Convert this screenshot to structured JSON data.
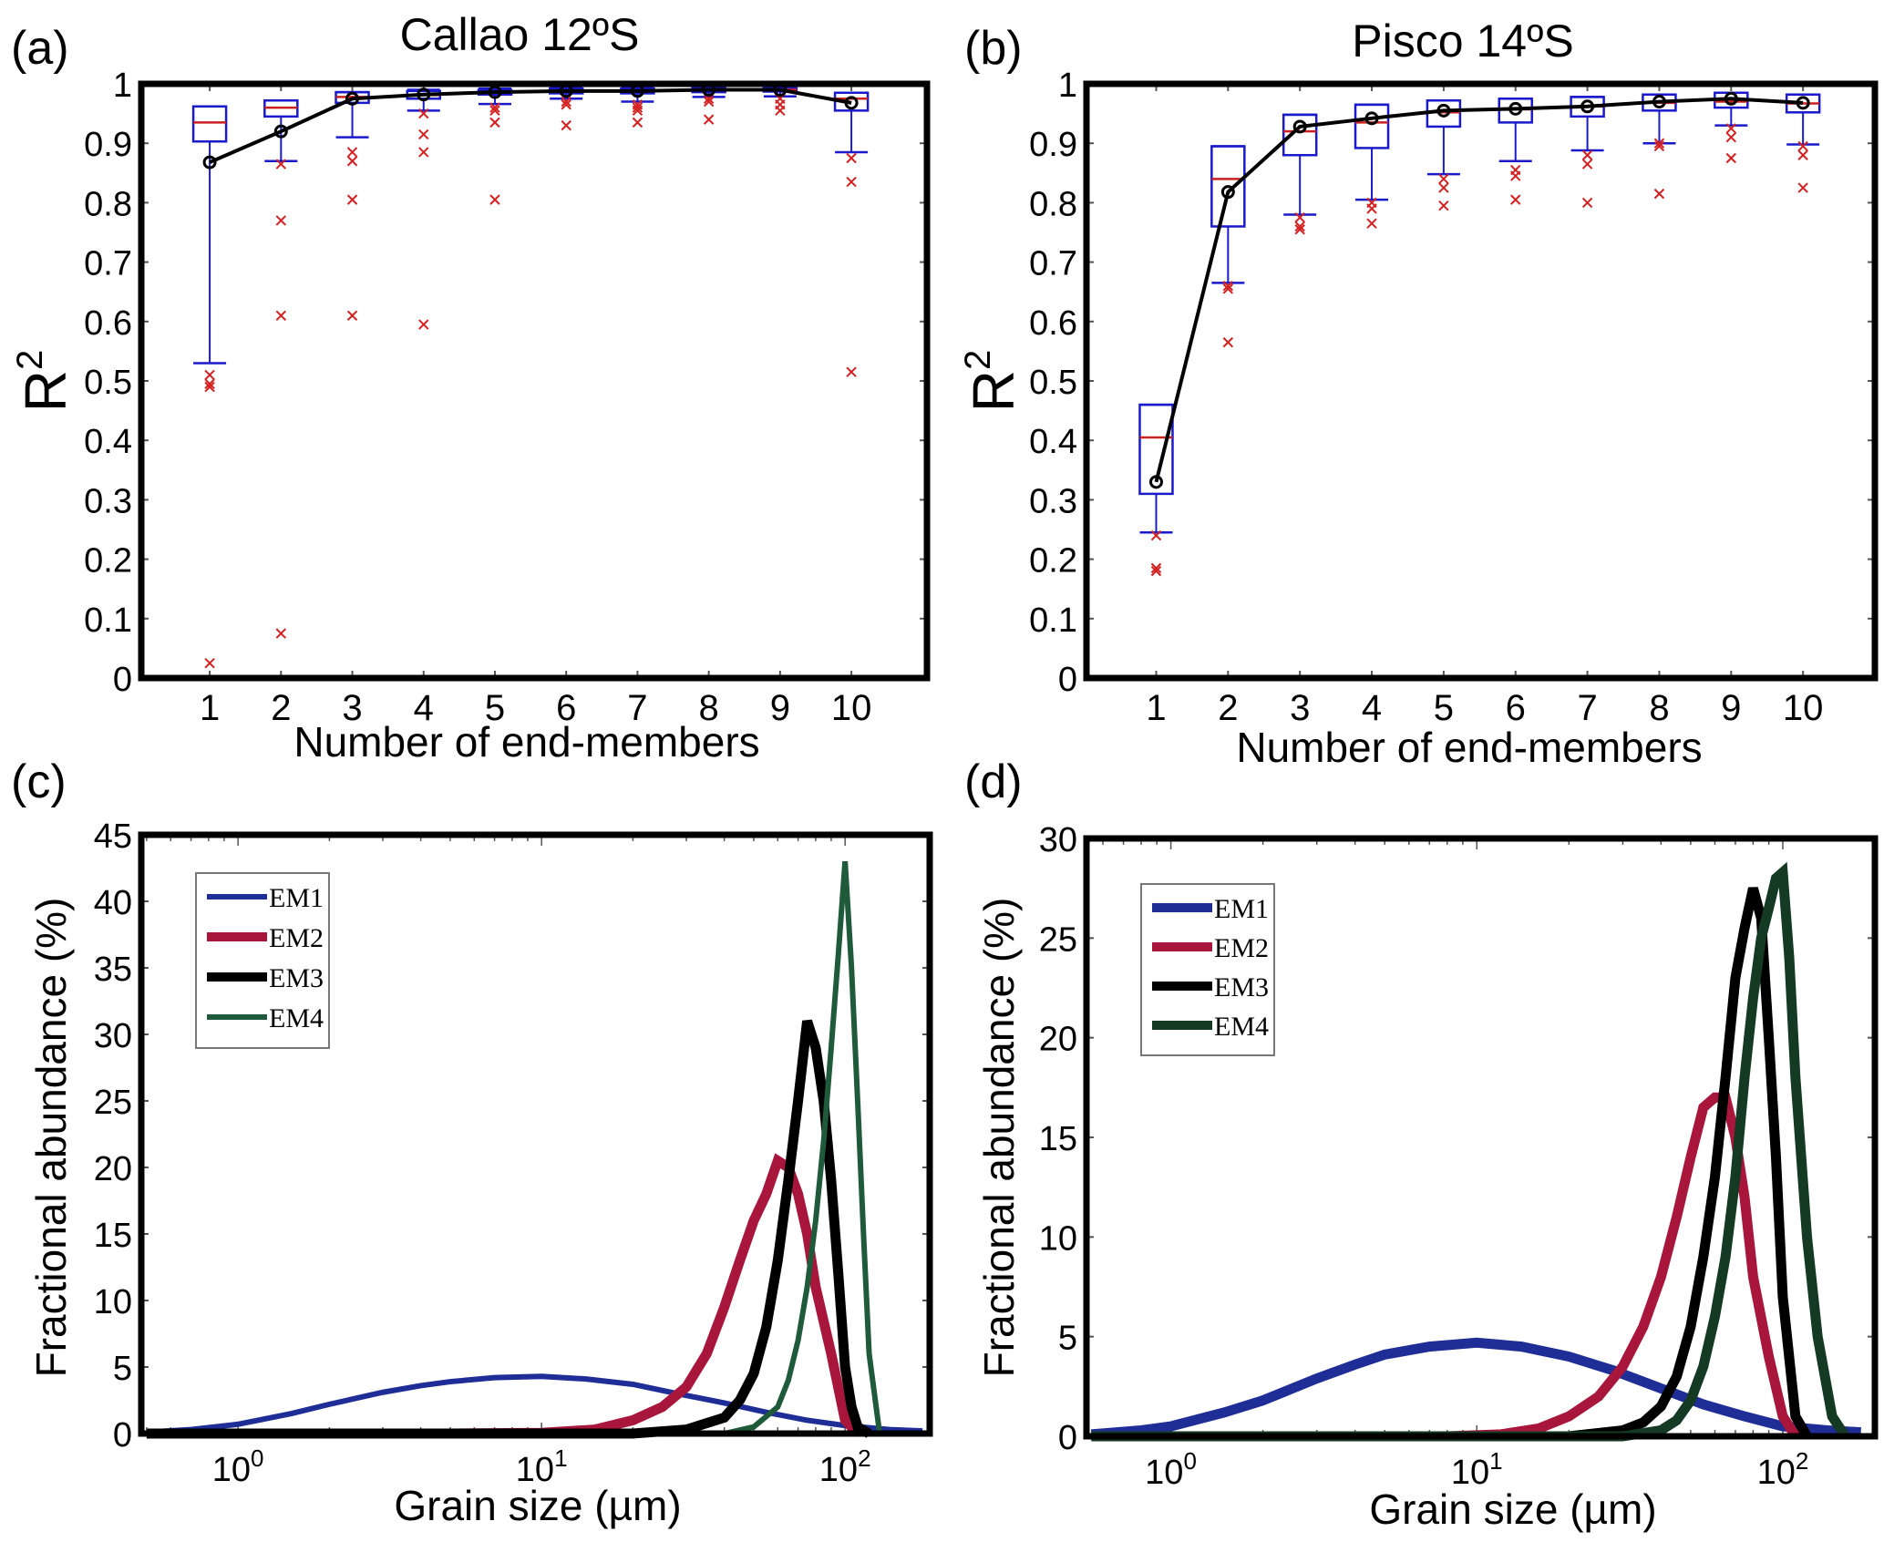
{
  "chart_data": [
    {
      "panel_label": "(a)",
      "type": "box",
      "title": "Callao 12ºS",
      "xlabel": "Number of end-members",
      "ylabel": "R",
      "ylabel_sup": "2",
      "xlim": [
        0.04,
        11.06
      ],
      "ylim": [
        0,
        1
      ],
      "yticks": [
        "0",
        "0.1",
        "0.2",
        "0.3",
        "0.4",
        "0.5",
        "0.6",
        "0.7",
        "0.8",
        "0.9",
        "1"
      ],
      "categories": [
        "1",
        "2",
        "3",
        "4",
        "5",
        "6",
        "7",
        "8",
        "9",
        "10"
      ],
      "boxes": [
        {
          "q1": 0.903,
          "median": 0.935,
          "q3": 0.962,
          "wlo": 0.53,
          "whi": 0.962,
          "outliers": [
            0.51,
            0.495,
            0.49,
            0.025
          ]
        },
        {
          "q1": 0.945,
          "median": 0.96,
          "q3": 0.972,
          "wlo": 0.87,
          "whi": 0.972,
          "outliers": [
            0.865,
            0.77,
            0.61,
            0.075
          ]
        },
        {
          "q1": 0.968,
          "median": 0.978,
          "q3": 0.986,
          "wlo": 0.91,
          "whi": 0.986,
          "outliers": [
            0.885,
            0.87,
            0.805,
            0.61
          ]
        },
        {
          "q1": 0.975,
          "median": 0.981,
          "q3": 0.988,
          "wlo": 0.955,
          "whi": 0.99,
          "outliers": [
            0.95,
            0.915,
            0.885,
            0.595
          ]
        },
        {
          "q1": 0.982,
          "median": 0.986,
          "q3": 0.99,
          "wlo": 0.966,
          "whi": 0.992,
          "outliers": [
            0.96,
            0.955,
            0.935,
            0.805
          ]
        },
        {
          "q1": 0.984,
          "median": 0.988,
          "q3": 0.992,
          "wlo": 0.975,
          "whi": 0.993,
          "outliers": [
            0.97,
            0.965,
            0.93
          ]
        },
        {
          "q1": 0.984,
          "median": 0.988,
          "q3": 0.992,
          "wlo": 0.97,
          "whi": 0.993,
          "outliers": [
            0.965,
            0.96,
            0.955,
            0.935
          ]
        },
        {
          "q1": 0.986,
          "median": 0.99,
          "q3": 0.993,
          "wlo": 0.978,
          "whi": 0.994,
          "outliers": [
            0.975,
            0.97,
            0.94
          ]
        },
        {
          "q1": 0.987,
          "median": 0.99,
          "q3": 0.993,
          "wlo": 0.979,
          "whi": 0.994,
          "outliers": [
            0.975,
            0.965,
            0.955
          ]
        },
        {
          "q1": 0.955,
          "median": 0.975,
          "q3": 0.985,
          "wlo": 0.885,
          "whi": 0.985,
          "outliers": [
            0.875,
            0.835,
            0.515
          ]
        }
      ],
      "mean_line": [
        0.868,
        0.92,
        0.975,
        0.982,
        0.986,
        0.988,
        0.988,
        0.99,
        0.99,
        0.968
      ],
      "colors": {
        "box": "#1a1acc",
        "median": "#cc2020",
        "outlier": "#d42020",
        "mean": "#000000"
      }
    },
    {
      "panel_label": "(b)",
      "type": "box",
      "title": "Pisco 14ºS",
      "xlabel": "Number of end-members",
      "ylabel": "R",
      "ylabel_sup": "2",
      "xlim": [
        0.03,
        11.0
      ],
      "ylim": [
        0,
        1
      ],
      "yticks": [
        "0",
        "0.1",
        "0.2",
        "0.3",
        "0.4",
        "0.5",
        "0.6",
        "0.7",
        "0.8",
        "0.9",
        "1"
      ],
      "categories": [
        "1",
        "2",
        "3",
        "4",
        "5",
        "6",
        "7",
        "8",
        "9",
        "10"
      ],
      "boxes": [
        {
          "q1": 0.31,
          "median": 0.405,
          "q3": 0.46,
          "wlo": 0.245,
          "whi": 0.46,
          "outliers": [
            0.24,
            0.185,
            0.18
          ]
        },
        {
          "q1": 0.76,
          "median": 0.84,
          "q3": 0.895,
          "wlo": 0.665,
          "whi": 0.895,
          "outliers": [
            0.66,
            0.655,
            0.565
          ]
        },
        {
          "q1": 0.88,
          "median": 0.92,
          "q3": 0.948,
          "wlo": 0.78,
          "whi": 0.948,
          "outliers": [
            0.775,
            0.76,
            0.755
          ]
        },
        {
          "q1": 0.892,
          "median": 0.935,
          "q3": 0.965,
          "wlo": 0.805,
          "whi": 0.965,
          "outliers": [
            0.8,
            0.79,
            0.765
          ]
        },
        {
          "q1": 0.928,
          "median": 0.952,
          "q3": 0.972,
          "wlo": 0.848,
          "whi": 0.972,
          "outliers": [
            0.84,
            0.825,
            0.795
          ]
        },
        {
          "q1": 0.935,
          "median": 0.957,
          "q3": 0.975,
          "wlo": 0.87,
          "whi": 0.975,
          "outliers": [
            0.855,
            0.845,
            0.805
          ]
        },
        {
          "q1": 0.945,
          "median": 0.962,
          "q3": 0.978,
          "wlo": 0.888,
          "whi": 0.978,
          "outliers": [
            0.88,
            0.865,
            0.8
          ]
        },
        {
          "q1": 0.955,
          "median": 0.968,
          "q3": 0.982,
          "wlo": 0.9,
          "whi": 0.982,
          "outliers": [
            0.9,
            0.895,
            0.815
          ]
        },
        {
          "q1": 0.96,
          "median": 0.97,
          "q3": 0.985,
          "wlo": 0.93,
          "whi": 0.985,
          "outliers": [
            0.925,
            0.91,
            0.875
          ]
        },
        {
          "q1": 0.952,
          "median": 0.967,
          "q3": 0.982,
          "wlo": 0.898,
          "whi": 0.982,
          "outliers": [
            0.895,
            0.88,
            0.825
          ]
        }
      ],
      "mean_line": [
        0.33,
        0.818,
        0.928,
        0.942,
        0.955,
        0.958,
        0.962,
        0.97,
        0.975,
        0.968
      ],
      "colors": {
        "box": "#1a1acc",
        "median": "#cc2020",
        "outlier": "#d42020",
        "mean": "#000000"
      }
    },
    {
      "panel_label": "(c)",
      "type": "line",
      "xscale": "log",
      "xlabel": "Grain size (µm)",
      "ylabel": "Fractional abundance (%)",
      "xlim": [
        0.48,
        190
      ],
      "ylim": [
        0,
        45
      ],
      "yticks": [
        "0",
        "5",
        "10",
        "15",
        "20",
        "25",
        "30",
        "35",
        "40",
        "45"
      ],
      "xticks": [
        {
          "value": 1,
          "base": "10",
          "exp": "0"
        },
        {
          "value": 10,
          "base": "10",
          "exp": "1"
        },
        {
          "value": 100,
          "base": "10",
          "exp": "2"
        }
      ],
      "legend": {
        "position": "top-left",
        "entries": [
          "EM1",
          "EM2",
          "EM3",
          "EM4"
        ]
      },
      "series": [
        {
          "name": "EM1",
          "color": "#1f2d96",
          "width": "thin",
          "x": [
            0.5,
            0.7,
            1,
            1.5,
            2,
            3,
            4,
            5,
            7,
            10,
            14,
            20,
            28,
            40,
            55,
            75,
            100,
            140,
            180
          ],
          "y": [
            0.1,
            0.3,
            0.7,
            1.5,
            2.2,
            3.1,
            3.6,
            3.9,
            4.2,
            4.3,
            4.1,
            3.7,
            3.0,
            2.3,
            1.6,
            1.0,
            0.6,
            0.3,
            0.2
          ]
        },
        {
          "name": "EM2",
          "color": "#a8163c",
          "width": "thick",
          "x": [
            0.5,
            5,
            10,
            15,
            20,
            25,
            30,
            35,
            40,
            45,
            50,
            55,
            60,
            65,
            70,
            75,
            80,
            90,
            100,
            110
          ],
          "y": [
            0,
            0,
            0.05,
            0.3,
            1,
            2,
            3.5,
            6,
            9.5,
            13,
            16,
            18,
            20.5,
            20,
            18,
            15,
            11,
            6,
            1,
            0
          ]
        },
        {
          "name": "EM3",
          "color": "#000000",
          "width": "thick",
          "x": [
            0.5,
            20,
            30,
            40,
            45,
            50,
            55,
            60,
            65,
            70,
            75,
            80,
            85,
            90,
            95,
            100,
            105,
            110,
            120
          ],
          "y": [
            0,
            0,
            0.3,
            1.2,
            2.5,
            4.5,
            8,
            13,
            19,
            25,
            31,
            29,
            25,
            19,
            12,
            5,
            2,
            0.5,
            0
          ]
        },
        {
          "name": "EM4",
          "color": "#1f5b3a",
          "width": "thin",
          "x": [
            0.5,
            40,
            50,
            60,
            65,
            70,
            75,
            80,
            85,
            90,
            95,
            100,
            105,
            110,
            115,
            120,
            130,
            190
          ],
          "y": [
            0,
            0,
            0.5,
            2,
            4,
            7,
            11,
            16,
            22,
            29,
            36,
            43,
            35,
            25,
            15,
            6,
            0,
            0
          ]
        }
      ]
    },
    {
      "panel_label": "(d)",
      "type": "line",
      "xscale": "log",
      "xlabel": "Grain size (µm)",
      "ylabel": "Fractional abundance (%)",
      "xlim": [
        0.53,
        200
      ],
      "ylim": [
        0,
        30
      ],
      "yticks": [
        "0",
        "5",
        "10",
        "15",
        "20",
        "25",
        "30"
      ],
      "xticks": [
        {
          "value": 1,
          "base": "10",
          "exp": "0"
        },
        {
          "value": 10,
          "base": "10",
          "exp": "1"
        },
        {
          "value": 100,
          "base": "10",
          "exp": "2"
        }
      ],
      "legend": {
        "position": "top-left",
        "entries": [
          "EM1",
          "EM2",
          "EM3",
          "EM4"
        ]
      },
      "series": [
        {
          "name": "EM1",
          "color": "#1f2d96",
          "width": "thick",
          "x": [
            0.55,
            0.8,
            1,
            1.5,
            2,
            3,
            4,
            5,
            7,
            10,
            14,
            20,
            28,
            40,
            55,
            75,
            100,
            140,
            180
          ],
          "y": [
            0.1,
            0.3,
            0.5,
            1.2,
            1.8,
            2.9,
            3.6,
            4.1,
            4.5,
            4.7,
            4.5,
            4,
            3.3,
            2.4,
            1.6,
            1,
            0.5,
            0.3,
            0.2
          ]
        },
        {
          "name": "EM2",
          "color": "#a8163c",
          "width": "thick",
          "x": [
            0.55,
            8,
            12,
            16,
            20,
            25,
            30,
            35,
            40,
            45,
            50,
            55,
            60,
            65,
            70,
            75,
            80,
            90,
            100,
            110
          ],
          "y": [
            0,
            0,
            0.1,
            0.4,
            1,
            2,
            3.5,
            5.5,
            8,
            11,
            14,
            16.5,
            17,
            17,
            15,
            12,
            8,
            4,
            1,
            0
          ]
        },
        {
          "name": "EM3",
          "color": "#000000",
          "width": "thick",
          "x": [
            0.55,
            20,
            30,
            35,
            40,
            45,
            50,
            55,
            60,
            65,
            70,
            75,
            80,
            85,
            90,
            95,
            100,
            110,
            120
          ],
          "y": [
            0,
            0,
            0.3,
            0.7,
            1.5,
            3,
            5.5,
            9,
            13,
            18,
            23,
            25.5,
            27.5,
            26,
            20,
            14,
            7,
            1,
            0
          ]
        },
        {
          "name": "EM4",
          "color": "#143a24",
          "width": "thick",
          "x": [
            0.55,
            30,
            40,
            45,
            50,
            55,
            60,
            65,
            70,
            75,
            80,
            85,
            90,
            95,
            100,
            105,
            110,
            120,
            130,
            145,
            160
          ],
          "y": [
            0,
            0,
            0.3,
            0.8,
            1.8,
            3.5,
            6,
            9,
            13,
            18,
            22,
            25,
            26.5,
            28,
            28.3,
            24,
            18,
            10,
            5,
            1,
            0
          ]
        }
      ]
    }
  ]
}
